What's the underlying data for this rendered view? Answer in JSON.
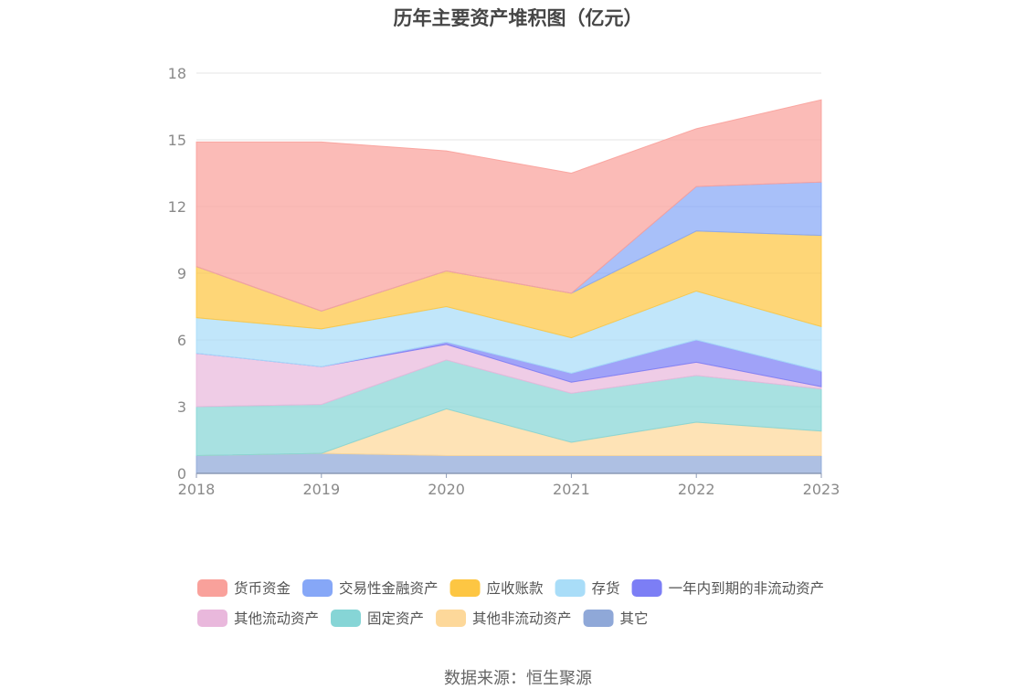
{
  "chart_data": {
    "type": "area",
    "stacked": true,
    "title": "历年主要资产堆积图（亿元）",
    "x": [
      "2018",
      "2019",
      "2020",
      "2021",
      "2022",
      "2023"
    ],
    "ylim": [
      0,
      18
    ],
    "yticks": [
      "0",
      "3",
      "6",
      "9",
      "12",
      "15",
      "18"
    ],
    "grid": true,
    "legend_position": "bottom",
    "series": [
      {
        "name": "其它",
        "color": "#8fa8d8",
        "values": [
          0.8,
          0.9,
          0.8,
          0.8,
          0.8,
          0.8
        ]
      },
      {
        "name": "其他非流动资产",
        "color": "#fdd89a",
        "values": [
          0.0,
          0.0,
          2.1,
          0.6,
          1.5,
          1.1
        ]
      },
      {
        "name": "固定资产",
        "color": "#86d5d6",
        "values": [
          2.2,
          2.2,
          2.2,
          2.2,
          2.1,
          1.9
        ]
      },
      {
        "name": "其他流动资产",
        "color": "#e9b8dc",
        "values": [
          2.4,
          1.7,
          0.7,
          0.5,
          0.6,
          0.1
        ]
      },
      {
        "name": "一年内到期的非流动资产",
        "color": "#7c7ef5",
        "values": [
          0.0,
          0.0,
          0.1,
          0.4,
          1.0,
          0.7
        ]
      },
      {
        "name": "存货",
        "color": "#a9ddf8",
        "values": [
          1.6,
          1.7,
          1.6,
          1.6,
          2.2,
          2.0
        ]
      },
      {
        "name": "应收账款",
        "color": "#fdc643",
        "values": [
          2.3,
          0.8,
          1.6,
          2.0,
          2.7,
          4.1
        ]
      },
      {
        "name": "交易性金融资产",
        "color": "#86a7f7",
        "values": [
          0.0,
          0.0,
          0.0,
          0.0,
          2.0,
          2.4
        ]
      },
      {
        "name": "货币资金",
        "color": "#f9a19b",
        "values": [
          5.6,
          7.6,
          5.4,
          5.4,
          2.6,
          3.7
        ]
      }
    ]
  },
  "legend_order": [
    "货币资金",
    "交易性金融资产",
    "应收账款",
    "存货",
    "一年内到期的非流动资产",
    "其他流动资产",
    "固定资产",
    "其他非流动资产",
    "其它"
  ],
  "source": "数据来源：恒生聚源"
}
